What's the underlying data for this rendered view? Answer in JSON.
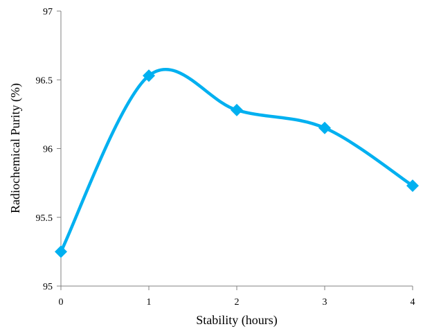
{
  "chart_data": {
    "type": "line",
    "title": "",
    "xlabel": "Stability (hours)",
    "ylabel": "Radiochemical Purity (%)",
    "x": [
      0,
      1,
      2,
      3,
      4
    ],
    "x_ticks": [
      "0",
      "1",
      "2",
      "3",
      "4"
    ],
    "y_ticks": [
      "95",
      "95.5",
      "96",
      "96.5",
      "97"
    ],
    "xlim": [
      0,
      4
    ],
    "ylim": [
      95,
      97
    ],
    "grid": false,
    "smooth": true,
    "series": [
      {
        "color": "#00B0F0",
        "marker": "diamond",
        "values": [
          95.25,
          96.53,
          96.28,
          96.15,
          95.73
        ]
      }
    ]
  }
}
